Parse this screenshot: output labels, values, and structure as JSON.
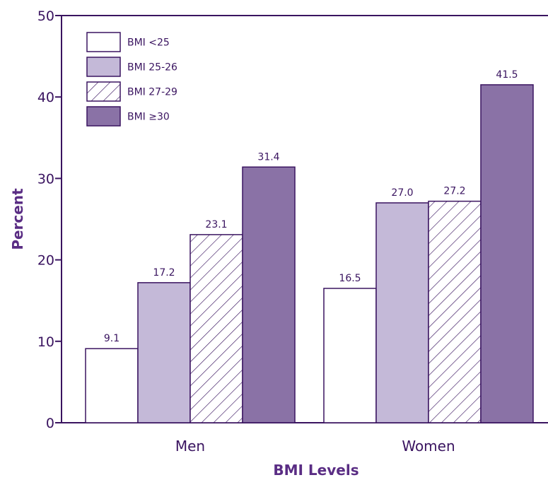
{
  "chart_data": {
    "type": "bar",
    "categories": [
      "Men",
      "Women"
    ],
    "series": [
      {
        "name": "BMI <25",
        "values": [
          9.1,
          16.5
        ],
        "style": "white",
        "color": "#ffffff"
      },
      {
        "name": "BMI 25-26",
        "values": [
          17.2,
          27.0
        ],
        "style": "light",
        "color": "#c4b9d8"
      },
      {
        "name": "BMI 27-29",
        "values": [
          23.1,
          27.2
        ],
        "style": "hatch",
        "color": "#ffffff"
      },
      {
        "name": "BMI ≥30",
        "values": [
          31.4,
          41.5
        ],
        "style": "dark",
        "color": "#8a72a6"
      }
    ],
    "data_labels": [
      [
        "9.1",
        "16.5"
      ],
      [
        "17.2",
        "27.0"
      ],
      [
        "23.1",
        "27.2"
      ],
      [
        "31.4",
        "41.5"
      ]
    ],
    "xlabel": "BMI Levels",
    "ylabel": "Percent",
    "ylim": [
      0,
      50
    ],
    "yticks": [
      0,
      10,
      20,
      30,
      40,
      50
    ],
    "grid": false,
    "legend_position": "top-left",
    "axis_color": "#3a1460",
    "bar_stroke_color": "#3a1460"
  }
}
